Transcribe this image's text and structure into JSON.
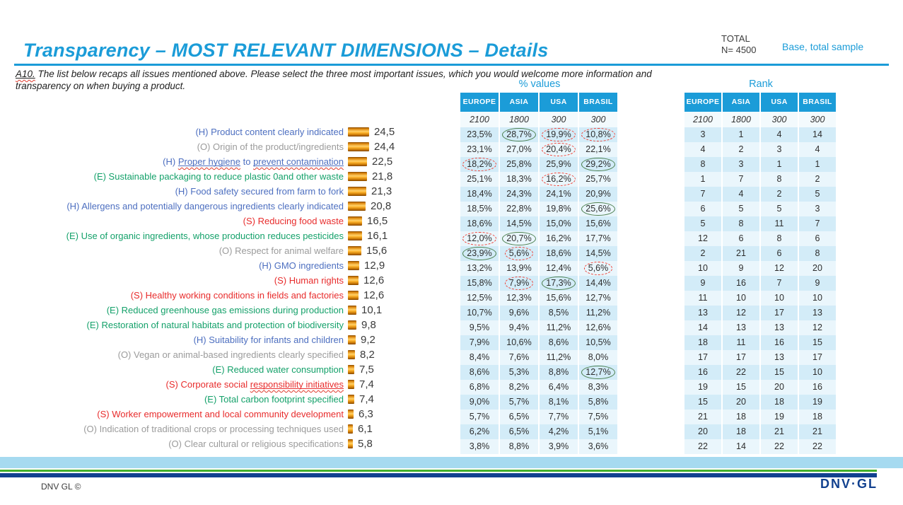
{
  "header": {
    "title": "Transparency – MOST RELEVANT DIMENSIONS – Details",
    "total_label": "TOTAL",
    "total_n": "N= 4500",
    "base_label": "Base, total sample"
  },
  "question": {
    "prefix": "A10.",
    "text": " The list below recaps all issues mentioned above. Please select the three most important issues, which you would welcome more information and transparency on when buying a product."
  },
  "pct_table_title": "% values",
  "rank_table_title": "Rank",
  "columns": [
    "EUROPE",
    "ASIA",
    "USA",
    "BRASIL"
  ],
  "sample_sizes": [
    "2100",
    "1800",
    "300",
    "300"
  ],
  "group_colors": {
    "H": "#4d6fc0",
    "O": "#9b9b9b",
    "E": "#14a16a",
    "S": "#e82c2c"
  },
  "accent_color": "#1b9cd8",
  "bar_color": "#f0a12c",
  "items": [
    {
      "group": "H",
      "label": "Product content clearly indicated",
      "value": "24,5",
      "pct": [
        "23,5%",
        "28,7%",
        "19,9%",
        "10,8%"
      ],
      "pct_marks": [
        null,
        "green",
        "red",
        "red"
      ],
      "rank": [
        "3",
        "1",
        "4",
        "14"
      ]
    },
    {
      "group": "O",
      "label": "Origin of the product/ingredients",
      "value": "24,4",
      "pct": [
        "23,1%",
        "27,0%",
        "20,4%",
        "22,1%"
      ],
      "pct_marks": [
        null,
        null,
        "red",
        null
      ],
      "rank": [
        "4",
        "2",
        "3",
        "4"
      ]
    },
    {
      "group": "H",
      "label": "Proper hygiene to prevent contamination",
      "underline": [
        "Proper hygiene",
        "prevent contamination"
      ],
      "value": "22,5",
      "pct": [
        "18,2%",
        "25,8%",
        "25,9%",
        "29,2%"
      ],
      "pct_marks": [
        "red",
        null,
        null,
        "green"
      ],
      "rank": [
        "8",
        "3",
        "1",
        "1"
      ]
    },
    {
      "group": "E",
      "label": "Sustainable packaging to reduce plastic 0and other waste",
      "value": "21,8",
      "pct": [
        "25,1%",
        "18,3%",
        "16,2%",
        "25,7%"
      ],
      "pct_marks": [
        null,
        null,
        "red",
        null
      ],
      "rank": [
        "1",
        "7",
        "8",
        "2"
      ]
    },
    {
      "group": "H",
      "label": "Food safety secured from farm to fork",
      "value": "21,3",
      "pct": [
        "18,4%",
        "24,3%",
        "24,1%",
        "20,9%"
      ],
      "pct_marks": [
        null,
        null,
        null,
        null
      ],
      "rank": [
        "7",
        "4",
        "2",
        "5"
      ]
    },
    {
      "group": "H",
      "label": "Allergens and potentially dangerous ingredients clearly indicated",
      "value": "20,8",
      "pct": [
        "18,5%",
        "22,8%",
        "19,8%",
        "25,6%"
      ],
      "pct_marks": [
        null,
        null,
        null,
        "green"
      ],
      "rank": [
        "6",
        "5",
        "5",
        "3"
      ]
    },
    {
      "group": "S",
      "label": "Reducing food waste",
      "value": "16,5",
      "pct": [
        "18,6%",
        "14,5%",
        "15,0%",
        "15,6%"
      ],
      "pct_marks": [
        null,
        null,
        null,
        null
      ],
      "rank": [
        "5",
        "8",
        "11",
        "7"
      ]
    },
    {
      "group": "E",
      "label": "Use of organic ingredients, whose production reduces pesticides",
      "value": "16,1",
      "pct": [
        "12,0%",
        "20,7%",
        "16,2%",
        "17,7%"
      ],
      "pct_marks": [
        "red",
        "green",
        null,
        null
      ],
      "rank": [
        "12",
        "6",
        "8",
        "6"
      ]
    },
    {
      "group": "O",
      "label": "Respect for animal welfare",
      "value": "15,6",
      "pct": [
        "23,9%",
        "5,6%",
        "18,6%",
        "14,5%"
      ],
      "pct_marks": [
        "green",
        "red",
        null,
        null
      ],
      "rank": [
        "2",
        "21",
        "6",
        "8"
      ]
    },
    {
      "group": "H",
      "label": "GMO ingredients",
      "value": "12,9",
      "pct": [
        "13,2%",
        "13,9%",
        "12,4%",
        "5,6%"
      ],
      "pct_marks": [
        null,
        null,
        null,
        "red"
      ],
      "rank": [
        "10",
        "9",
        "12",
        "20"
      ]
    },
    {
      "group": "S",
      "label": "Human rights",
      "value": "12,6",
      "pct": [
        "15,8%",
        "7,9%",
        "17,3%",
        "14,4%"
      ],
      "pct_marks": [
        null,
        "red",
        "green",
        null
      ],
      "rank": [
        "9",
        "16",
        "7",
        "9"
      ]
    },
    {
      "group": "S",
      "label": "Healthy working conditions in fields and factories",
      "value": "12,6",
      "pct": [
        "12,5%",
        "12,3%",
        "15,6%",
        "12,7%"
      ],
      "pct_marks": [
        null,
        null,
        null,
        null
      ],
      "rank": [
        "11",
        "10",
        "10",
        "10"
      ]
    },
    {
      "group": "E",
      "label": "Reduced greenhouse gas emissions during production",
      "value": "10,1",
      "pct": [
        "10,7%",
        "9,6%",
        "8,5%",
        "11,2%"
      ],
      "pct_marks": [
        null,
        null,
        null,
        null
      ],
      "rank": [
        "13",
        "12",
        "17",
        "13"
      ]
    },
    {
      "group": "E",
      "label": "Restoration of natural habitats and protection of biodiversity",
      "value": "9,8",
      "pct": [
        "9,5%",
        "9,4%",
        "11,2%",
        "12,6%"
      ],
      "pct_marks": [
        null,
        null,
        null,
        null
      ],
      "rank": [
        "14",
        "13",
        "13",
        "12"
      ]
    },
    {
      "group": "H",
      "label": "Suitability for infants and children",
      "value": "9,2",
      "pct": [
        "7,9%",
        "10,6%",
        "8,6%",
        "10,5%"
      ],
      "pct_marks": [
        null,
        null,
        null,
        null
      ],
      "rank": [
        "18",
        "11",
        "16",
        "15"
      ]
    },
    {
      "group": "O",
      "label": "Vegan or animal-based ingredients clearly specified",
      "value": "8,2",
      "pct": [
        "8,4%",
        "7,6%",
        "11,2%",
        "8,0%"
      ],
      "pct_marks": [
        null,
        null,
        null,
        null
      ],
      "rank": [
        "17",
        "17",
        "13",
        "17"
      ]
    },
    {
      "group": "E",
      "label": "Reduced water consumption",
      "value": "7,5",
      "pct": [
        "8,6%",
        "5,3%",
        "8,8%",
        "12,7%"
      ],
      "pct_marks": [
        null,
        null,
        null,
        "green"
      ],
      "rank": [
        "16",
        "22",
        "15",
        "10"
      ]
    },
    {
      "group": "S",
      "label": "Corporate social responsibility initiatives",
      "underline": [
        "responsibility initiatives"
      ],
      "value": "7,4",
      "pct": [
        "6,8%",
        "8,2%",
        "6,4%",
        "8,3%"
      ],
      "pct_marks": [
        null,
        null,
        null,
        null
      ],
      "rank": [
        "19",
        "15",
        "20",
        "16"
      ]
    },
    {
      "group": "E",
      "label": "Total carbon footprint specified",
      "value": "7,4",
      "pct": [
        "9,0%",
        "5,7%",
        "8,1%",
        "5,8%"
      ],
      "pct_marks": [
        null,
        null,
        null,
        null
      ],
      "rank": [
        "15",
        "20",
        "18",
        "19"
      ]
    },
    {
      "group": "S",
      "label": "Worker empowerment and local community development",
      "value": "6,3",
      "pct": [
        "5,7%",
        "6,5%",
        "7,7%",
        "7,5%"
      ],
      "pct_marks": [
        null,
        null,
        null,
        null
      ],
      "rank": [
        "21",
        "18",
        "19",
        "18"
      ]
    },
    {
      "group": "O",
      "label": "Indication of traditional crops or processing techniques used",
      "value": "6,1",
      "pct": [
        "6,2%",
        "6,5%",
        "4,2%",
        "5,1%"
      ],
      "pct_marks": [
        null,
        null,
        null,
        null
      ],
      "rank": [
        "20",
        "18",
        "21",
        "21"
      ]
    },
    {
      "group": "O",
      "label": "Clear cultural or religious specifications",
      "value": "5,8",
      "pct": [
        "3,8%",
        "8,8%",
        "3,9%",
        "3,6%"
      ],
      "pct_marks": [
        null,
        null,
        null,
        null
      ],
      "rank": [
        "22",
        "14",
        "22",
        "22"
      ]
    }
  ],
  "footer": {
    "copyright": "DNV GL ©",
    "logo": "DNV·GL"
  },
  "chart_data": {
    "type": "bar",
    "orientation": "horizontal",
    "title": "Transparency – MOST RELEVANT DIMENSIONS – Details",
    "subtitle": "A10. The list below recaps all issues mentioned above. Please select the three most important issues, which you would welcome more information and transparency on when buying a product.",
    "base": "TOTAL N= 4500, Base, total sample",
    "categories": [
      "(H) Product content clearly indicated",
      "(O) Origin of the product/ingredients",
      "(H) Proper hygiene to prevent contamination",
      "(E) Sustainable packaging to reduce plastic 0and other waste",
      "(H) Food safety secured from farm to fork",
      "(H) Allergens and potentially dangerous ingredients clearly indicated",
      "(S) Reducing food waste",
      "(E) Use of organic ingredients, whose production reduces pesticides",
      "(O) Respect for animal welfare",
      "(H) GMO ingredients",
      "(S) Human rights",
      "(S) Healthy working conditions in fields and factories",
      "(E) Reduced greenhouse gas emissions during production",
      "(E) Restoration of natural habitats and protection of biodiversity",
      "(H) Suitability for infants and children",
      "(O) Vegan or animal-based ingredients clearly specified",
      "(E) Reduced water consumption",
      "(S) Corporate social responsibility initiatives",
      "(E) Total carbon footprint specified",
      "(S) Worker empowerment and local community development",
      "(O) Indication of traditional crops or processing techniques used",
      "(O) Clear cultural or religious specifications"
    ],
    "values": [
      24.5,
      24.4,
      22.5,
      21.8,
      21.3,
      20.8,
      16.5,
      16.1,
      15.6,
      12.9,
      12.6,
      12.6,
      10.1,
      9.8,
      9.2,
      8.2,
      7.5,
      7.4,
      7.4,
      6.3,
      6.1,
      5.8
    ],
    "tables": [
      {
        "title": "% values",
        "columns": [
          "EUROPE",
          "ASIA",
          "USA",
          "BRASIL"
        ],
        "n": [
          2100,
          1800,
          300,
          300
        ],
        "series": [
          {
            "name": "EUROPE",
            "values": [
              23.5,
              23.1,
              18.2,
              25.1,
              18.4,
              18.5,
              18.6,
              12.0,
              23.9,
              13.2,
              15.8,
              12.5,
              10.7,
              9.5,
              7.9,
              8.4,
              8.6,
              6.8,
              9.0,
              5.7,
              6.2,
              3.8
            ]
          },
          {
            "name": "ASIA",
            "values": [
              28.7,
              27.0,
              25.8,
              18.3,
              24.3,
              22.8,
              14.5,
              20.7,
              5.6,
              13.9,
              7.9,
              12.3,
              9.6,
              9.4,
              10.6,
              7.6,
              5.3,
              8.2,
              5.7,
              6.5,
              6.5,
              8.8
            ]
          },
          {
            "name": "USA",
            "values": [
              19.9,
              20.4,
              25.9,
              16.2,
              24.1,
              19.8,
              15.0,
              16.2,
              18.6,
              12.4,
              17.3,
              15.6,
              8.5,
              11.2,
              8.6,
              11.2,
              8.8,
              6.4,
              8.1,
              7.7,
              4.2,
              3.9
            ]
          },
          {
            "name": "BRASIL",
            "values": [
              10.8,
              22.1,
              29.2,
              25.7,
              20.9,
              25.6,
              15.6,
              17.7,
              14.5,
              5.6,
              14.4,
              12.7,
              11.2,
              12.6,
              10.5,
              8.0,
              12.7,
              8.3,
              5.8,
              7.5,
              5.1,
              3.6
            ]
          }
        ],
        "annotations": "green solid circle = significantly high, red dashed circle = significantly low"
      },
      {
        "title": "Rank",
        "columns": [
          "EUROPE",
          "ASIA",
          "USA",
          "BRASIL"
        ],
        "n": [
          2100,
          1800,
          300,
          300
        ],
        "series": [
          {
            "name": "EUROPE",
            "values": [
              3,
              4,
              8,
              1,
              7,
              6,
              5,
              12,
              2,
              10,
              9,
              11,
              13,
              14,
              18,
              17,
              16,
              19,
              15,
              21,
              20,
              22
            ]
          },
          {
            "name": "ASIA",
            "values": [
              1,
              2,
              3,
              7,
              4,
              5,
              8,
              6,
              21,
              9,
              16,
              10,
              12,
              13,
              11,
              17,
              22,
              15,
              20,
              18,
              18,
              14
            ]
          },
          {
            "name": "USA",
            "values": [
              4,
              3,
              1,
              8,
              2,
              5,
              11,
              8,
              6,
              12,
              7,
              10,
              17,
              13,
              16,
              13,
              15,
              20,
              18,
              19,
              21,
              22
            ]
          },
          {
            "name": "BRASIL",
            "values": [
              14,
              4,
              1,
              2,
              5,
              3,
              7,
              6,
              8,
              20,
              9,
              10,
              13,
              12,
              15,
              17,
              10,
              16,
              19,
              18,
              21,
              22
            ]
          }
        ]
      }
    ]
  }
}
